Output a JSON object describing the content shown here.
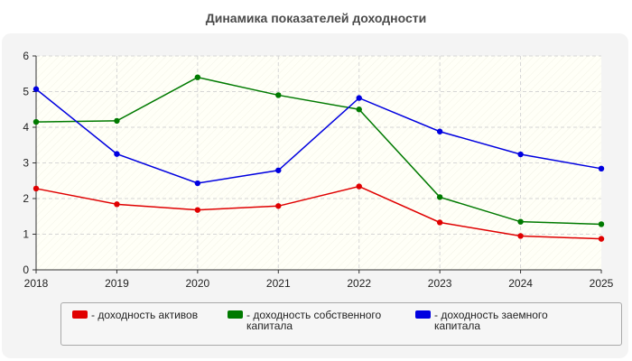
{
  "chart_data": {
    "type": "line",
    "title": "Динамика показателей доходности",
    "xlabel": "",
    "ylabel": "",
    "categories": [
      "2018",
      "2019",
      "2020",
      "2021",
      "2022",
      "2023",
      "2024",
      "2025"
    ],
    "ylim": [
      0,
      6
    ],
    "yticks": [
      "0",
      "1",
      "2",
      "3",
      "4",
      "5",
      "6"
    ],
    "grid": true,
    "legend_position": "bottom",
    "series": [
      {
        "name": "- доходность активов",
        "color": "#e00000",
        "values": [
          2.28,
          1.84,
          1.68,
          1.79,
          2.34,
          1.33,
          0.95,
          0.87
        ]
      },
      {
        "name": "- доходность собственного капитала",
        "color": "#007a00",
        "values": [
          4.15,
          4.18,
          5.4,
          4.9,
          4.5,
          2.04,
          1.35,
          1.28
        ]
      },
      {
        "name": "- доходность заемного капитала",
        "color": "#0000e0",
        "values": [
          5.07,
          3.25,
          2.43,
          2.79,
          4.82,
          3.88,
          3.24,
          2.84
        ]
      }
    ]
  }
}
